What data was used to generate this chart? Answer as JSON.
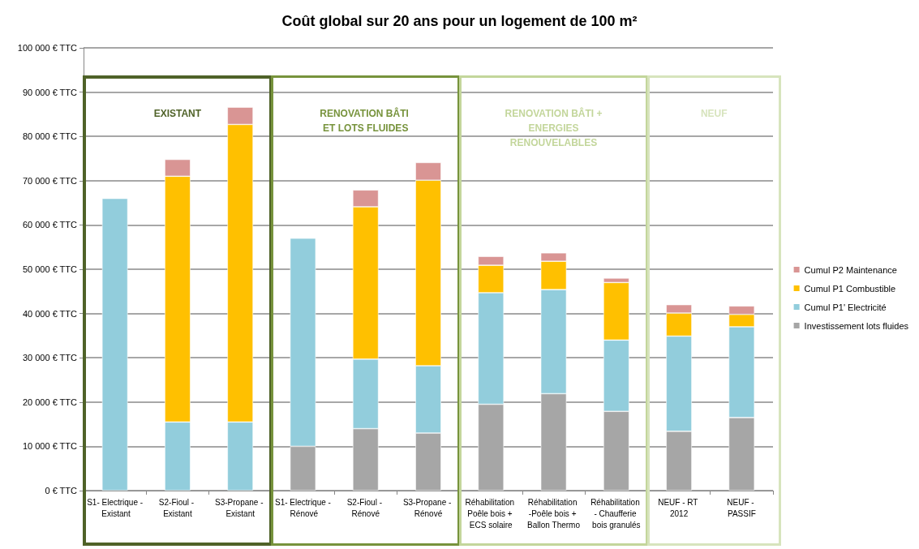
{
  "chart_data": {
    "type": "bar",
    "stacked": true,
    "title": "Coût global sur 20 ans pour un logement de 100 m²",
    "categories": [
      "S1- Electrique - Existant",
      "S2-Fioul - Existant",
      "S3-Propane - Existant",
      "S1- Electrique - Rénové",
      "S2-Fioul - Rénové",
      "S3-Propane - Rénové",
      "Réhabilitation Poêle bois + ECS solaire",
      "Réhabilitation -Poêle bois + Ballon Thermo",
      "Réhabilitation - Chaufferie bois granulés",
      "NEUF - RT 2012",
      "NEUF - PASSIF"
    ],
    "series": [
      {
        "name": "Investissement lots fluides",
        "color": "#a6a6a6",
        "values": [
          null,
          null,
          null,
          10000,
          14000,
          13000,
          19500,
          21900,
          17900,
          13400,
          16500
        ]
      },
      {
        "name": "Cumul P1' Electricité",
        "color": "#92cddc",
        "values": [
          66000,
          15500,
          15500,
          47000,
          15700,
          15200,
          25200,
          23500,
          16100,
          21500,
          20500
        ]
      },
      {
        "name": "Cumul P1 Combustible",
        "color": "#ffc000",
        "values": [
          null,
          55500,
          67200,
          null,
          34400,
          41900,
          6200,
          6400,
          13000,
          5200,
          2800
        ]
      },
      {
        "name": "Cumul P2 Maintenance",
        "color": "#d99594",
        "values": [
          null,
          3800,
          3900,
          null,
          3800,
          4000,
          2000,
          1900,
          1000,
          1900,
          1900
        ]
      }
    ],
    "ylim": [
      0,
      100000
    ],
    "yticks": [
      {
        "value": 0,
        "label": "0 € TTC"
      },
      {
        "value": 10000,
        "label": "10 000 € TTC"
      },
      {
        "value": 20000,
        "label": "20 000 € TTC"
      },
      {
        "value": 30000,
        "label": "30 000 € TTC"
      },
      {
        "value": 40000,
        "label": "40 000 € TTC"
      },
      {
        "value": 50000,
        "label": "50 000 € TTC"
      },
      {
        "value": 60000,
        "label": "60 000 € TTC"
      },
      {
        "value": 70000,
        "label": "70 000 € TTC"
      },
      {
        "value": 80000,
        "label": "80 000 € TTC"
      },
      {
        "value": 90000,
        "label": "90 000 € TTC"
      },
      {
        "value": 100000,
        "label": "100 000 € TTC"
      }
    ],
    "annotations": [
      "EXISTANT",
      "RENOVATION BÂTI ET LOTS FLUIDES",
      "RENOVATION BÂTI + ENERGIES RENOUVELABLES",
      "NEUF"
    ],
    "grid": "y",
    "legend": "right"
  }
}
